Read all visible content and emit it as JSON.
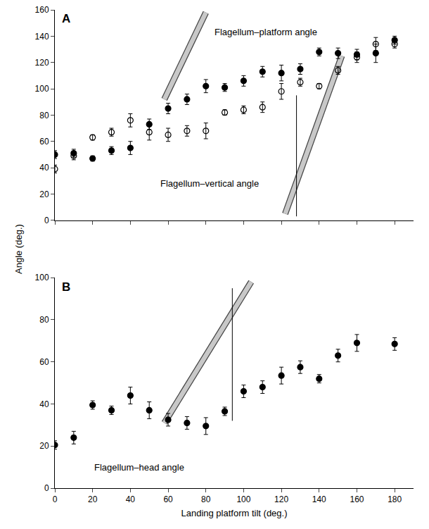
{
  "chart_data": [
    {
      "type": "scatter",
      "panel": "A",
      "grid": false,
      "tick_labels": "y",
      "ylabel": "Angle (deg.)",
      "x": [
        0,
        10,
        20,
        30,
        40,
        50,
        60,
        70,
        80,
        90,
        100,
        110,
        120,
        130,
        140,
        150,
        160,
        170,
        180
      ],
      "xlim": [
        0,
        190
      ],
      "xticks": [
        0,
        20,
        40,
        60,
        80,
        100,
        120,
        140,
        160,
        180
      ],
      "ylim": [
        0,
        160
      ],
      "yticks": [
        0,
        20,
        40,
        60,
        80,
        100,
        120,
        140,
        160
      ],
      "annotations": [
        "Flagellum–platform angle",
        "Flagellum–vertical angle"
      ],
      "series": [
        {
          "marker": "circle",
          "color": "#000000",
          "values": [
            50,
            51,
            47,
            53,
            55,
            73,
            85,
            92,
            102,
            101,
            106,
            113,
            112,
            115,
            128,
            127,
            126,
            127,
            137
          ],
          "errors": [
            3,
            3,
            2,
            3,
            5,
            4,
            4,
            4,
            5,
            3,
            4,
            4,
            6,
            4,
            3,
            4,
            4,
            7,
            3
          ]
        },
        {
          "marker": "circle-open",
          "color": "#000000",
          "values": [
            39,
            49,
            63,
            67,
            76,
            67,
            65,
            68,
            68,
            82,
            84,
            86,
            98,
            105,
            102,
            114,
            124,
            134,
            134
          ],
          "errors": [
            3,
            3,
            2,
            3,
            5,
            6,
            5,
            4,
            6,
            2,
            3,
            4,
            6,
            3,
            2,
            3,
            4,
            5,
            3
          ]
        }
      ]
    },
    {
      "type": "scatter",
      "panel": "B",
      "grid": false,
      "xlabel": "Landing platform tilt (deg.)",
      "x": [
        0,
        10,
        20,
        30,
        40,
        50,
        60,
        70,
        80,
        90,
        100,
        110,
        120,
        130,
        140,
        150,
        160,
        180
      ],
      "xlim": [
        0,
        190
      ],
      "xticks": [
        0,
        20,
        40,
        60,
        80,
        100,
        120,
        140,
        160,
        180
      ],
      "ylim": [
        0,
        100
      ],
      "yticks": [
        0,
        20,
        40,
        60,
        80,
        100
      ],
      "annotations": [
        "Flagellum–head angle"
      ],
      "series": [
        {
          "marker": "circle",
          "color": "#000000",
          "values": [
            20.5,
            24,
            39.5,
            37,
            44,
            37,
            32.5,
            31,
            29.5,
            36.5,
            46,
            48,
            53.5,
            57.5,
            52,
            63,
            69,
            68.5
          ],
          "errors": [
            2,
            3,
            2,
            2,
            4,
            4,
            3,
            3,
            4,
            2,
            3,
            3,
            4,
            3,
            2,
            3,
            4,
            3
          ]
        }
      ]
    }
  ]
}
